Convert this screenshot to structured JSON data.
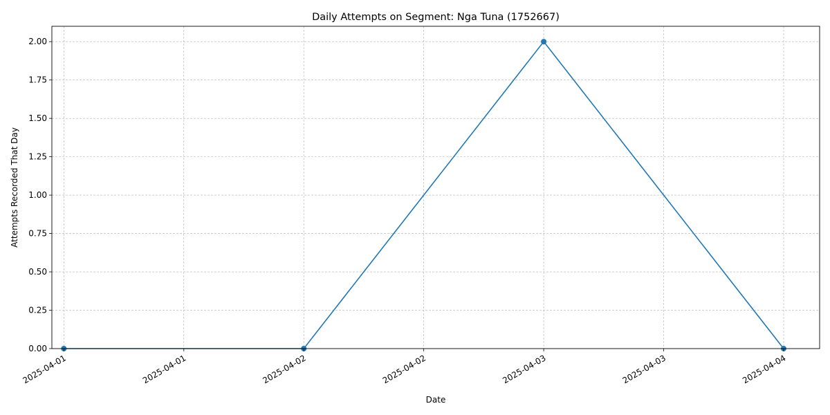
{
  "chart_data": {
    "type": "line",
    "title": "Daily Attempts on Segment: Nga Tuna (1752667)",
    "xlabel": "Date",
    "ylabel": "Attempts Recorded That Day",
    "x_tick_labels": [
      "2025-04-01",
      "2025-04-01",
      "2025-04-02",
      "2025-04-02",
      "2025-04-03",
      "2025-04-03",
      "2025-04-04"
    ],
    "y_tick_labels": [
      "0.00",
      "0.25",
      "0.50",
      "0.75",
      "1.00",
      "1.25",
      "1.50",
      "1.75",
      "2.00"
    ],
    "ylim": [
      0,
      2.1
    ],
    "grid": true,
    "series": [
      {
        "x": [
          "2025-04-01",
          "2025-04-02",
          "2025-04-03",
          "2025-04-04"
        ],
        "values": [
          0,
          0,
          2,
          0
        ],
        "color": "#1f77b4",
        "marker": "circle"
      }
    ]
  }
}
